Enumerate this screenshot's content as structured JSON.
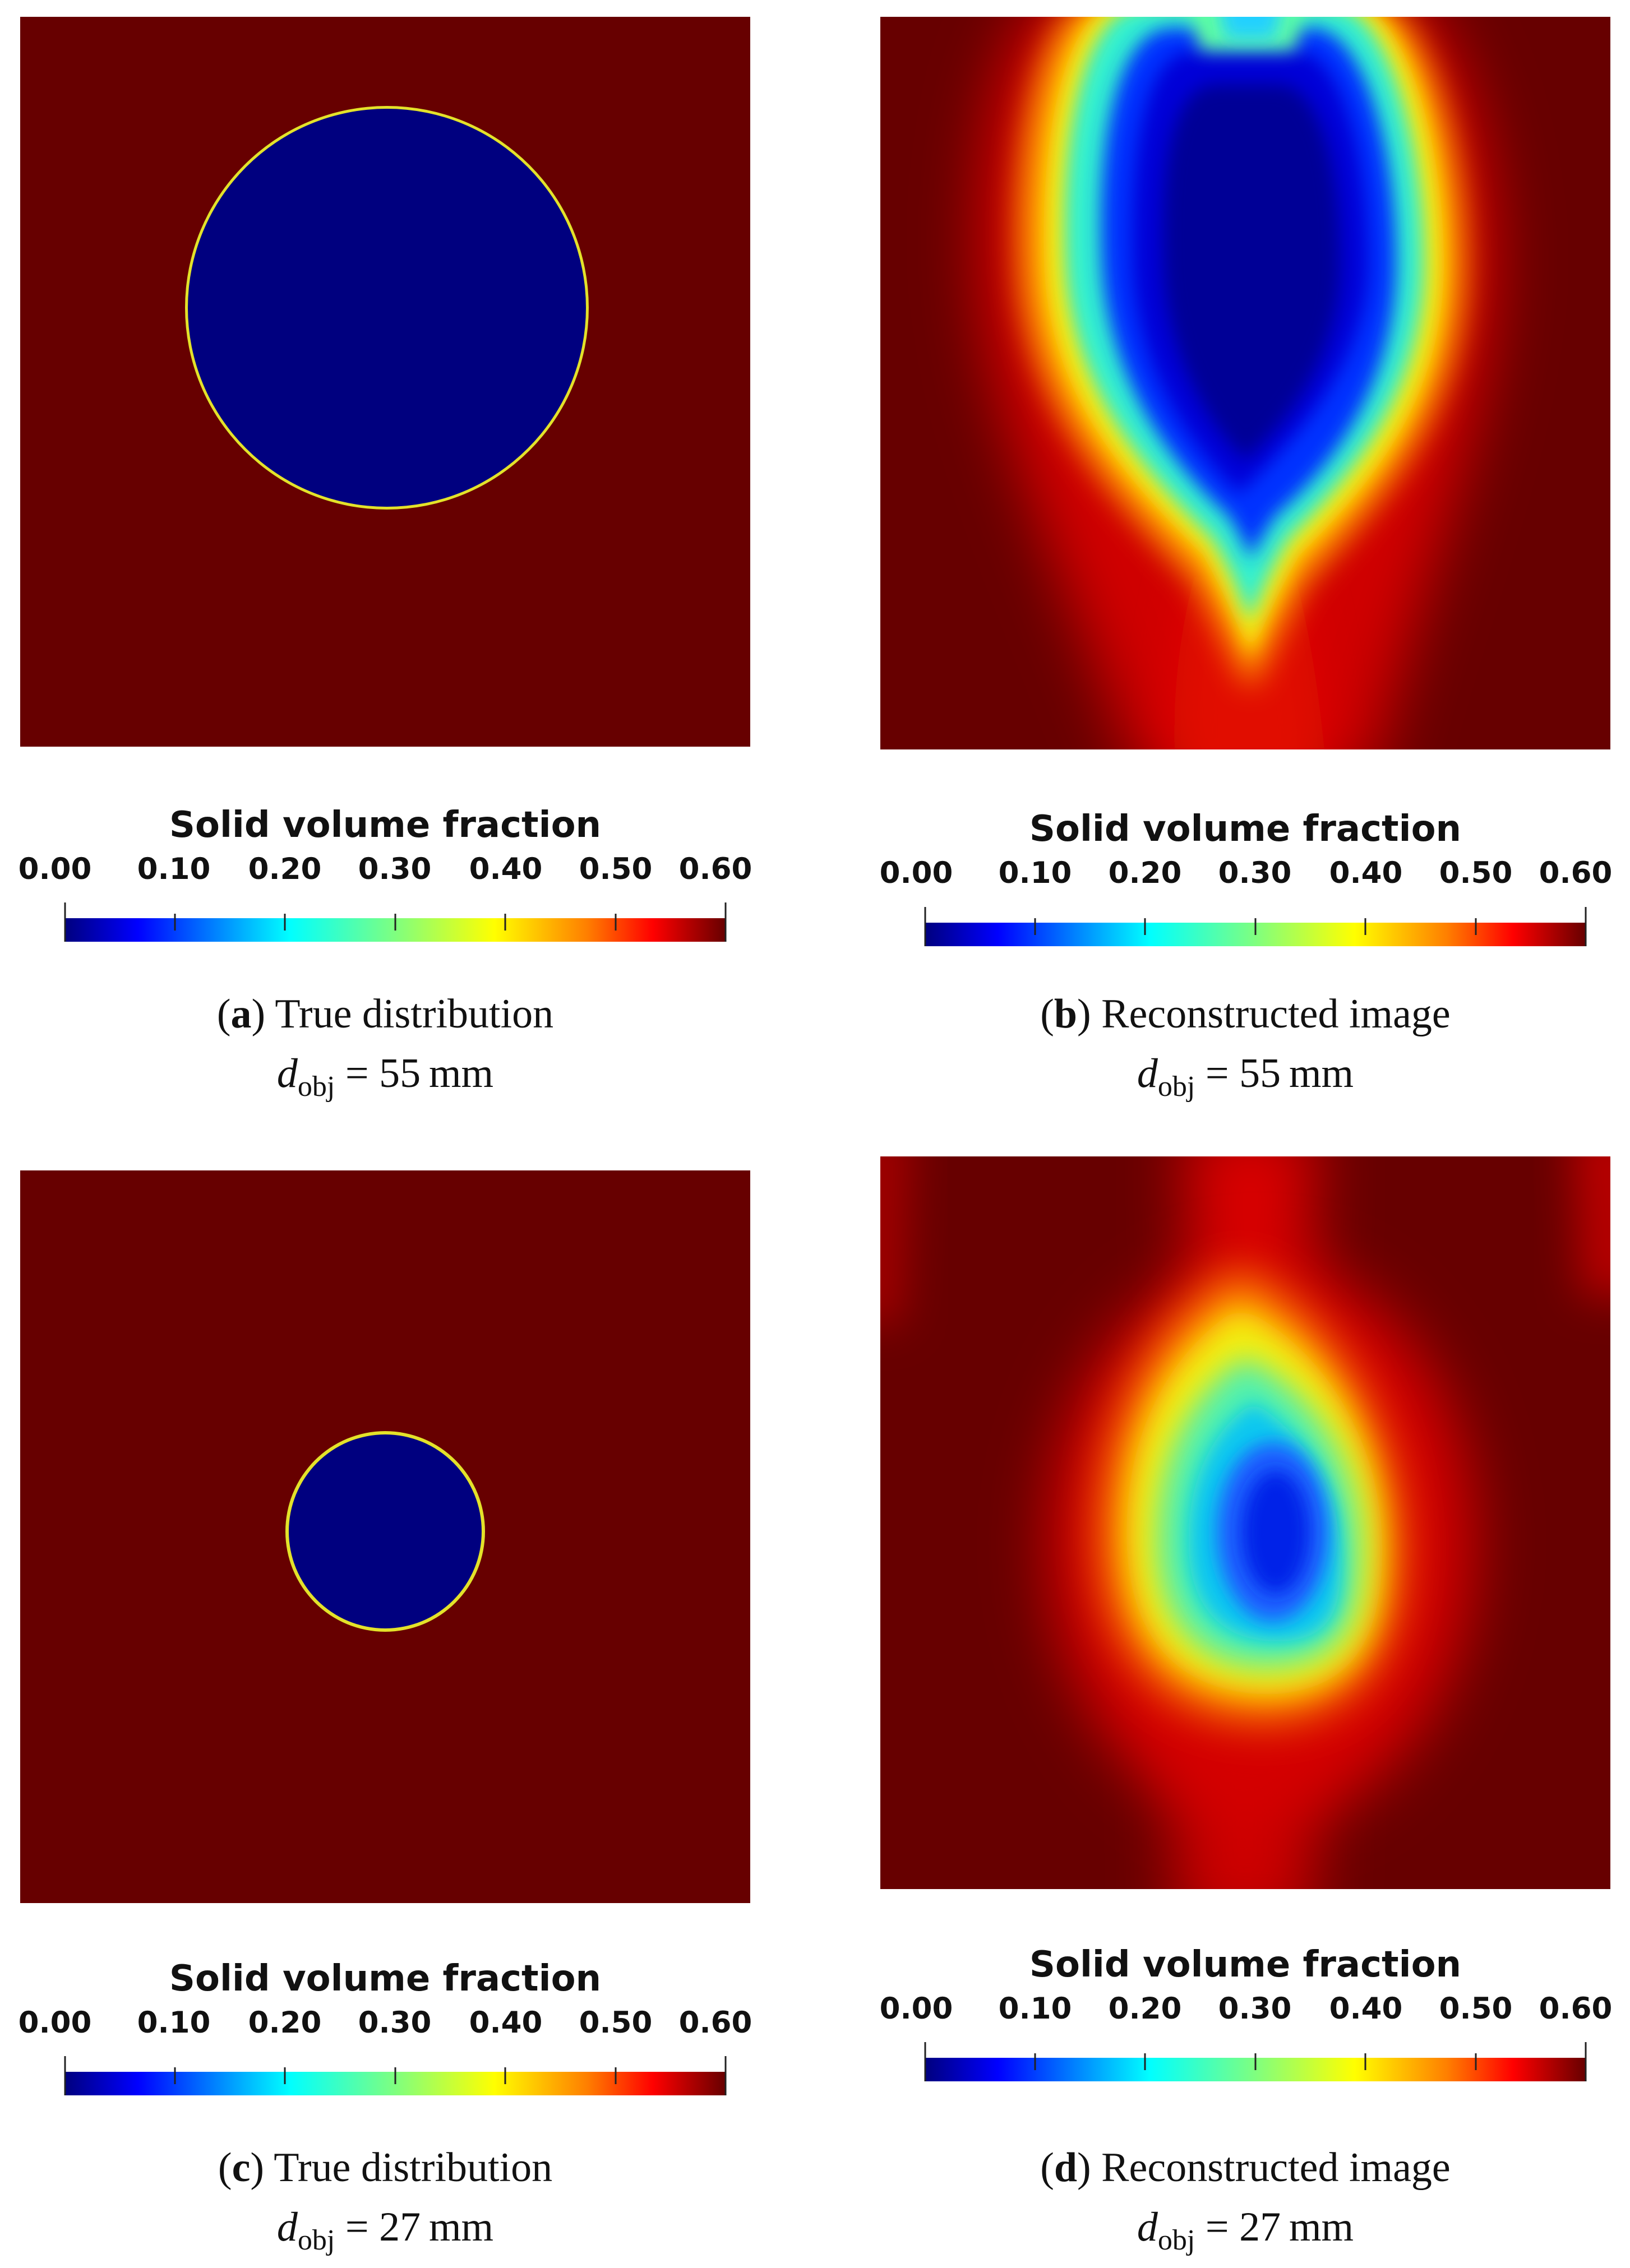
{
  "colormap": {
    "name": "jet",
    "stops": [
      "#00007f",
      "#0000ff",
      "#007fff",
      "#00ffff",
      "#7fff7f",
      "#ffff00",
      "#ff7f00",
      "#ff0000",
      "#670000"
    ]
  },
  "background_color": "#670000",
  "object_color": "#00007f",
  "panels": [
    {
      "id": "a",
      "colorbar": {
        "title": "Solid volume fraction",
        "ticks": [
          "0.00",
          "0.10",
          "0.20",
          "0.30",
          "0.40",
          "0.50",
          "0.60"
        ]
      },
      "caption": {
        "letter": "a",
        "open": "(",
        "close": ")",
        "text": " True distribution"
      },
      "formula": {
        "symbol": "d",
        "subscript": "obj",
        "equals": " = ",
        "value": "55",
        "unit": "mm"
      }
    },
    {
      "id": "b",
      "colorbar": {
        "title": "Solid volume fraction",
        "ticks": [
          "0.00",
          "0.10",
          "0.20",
          "0.30",
          "0.40",
          "0.50",
          "0.60"
        ]
      },
      "caption": {
        "letter": "b",
        "open": "(",
        "close": ")",
        "text": " Reconstructed image"
      },
      "formula": {
        "symbol": "d",
        "subscript": "obj",
        "equals": " = ",
        "value": "55",
        "unit": "mm"
      }
    },
    {
      "id": "c",
      "colorbar": {
        "title": "Solid volume fraction",
        "ticks": [
          "0.00",
          "0.10",
          "0.20",
          "0.30",
          "0.40",
          "0.50",
          "0.60"
        ]
      },
      "caption": {
        "letter": "c",
        "open": "(",
        "close": ")",
        "text": " True distribution"
      },
      "formula": {
        "symbol": "d",
        "subscript": "obj",
        "equals": " = ",
        "value": "27",
        "unit": "mm"
      }
    },
    {
      "id": "d",
      "colorbar": {
        "title": "Solid volume fraction",
        "ticks": [
          "0.00",
          "0.10",
          "0.20",
          "0.30",
          "0.40",
          "0.50",
          "0.60"
        ]
      },
      "caption": {
        "letter": "d",
        "open": "(",
        "close": ")",
        "text": " Reconstructed image"
      },
      "formula": {
        "symbol": "d",
        "subscript": "obj",
        "equals": " = ",
        "value": "27",
        "unit": "mm"
      }
    }
  ]
}
